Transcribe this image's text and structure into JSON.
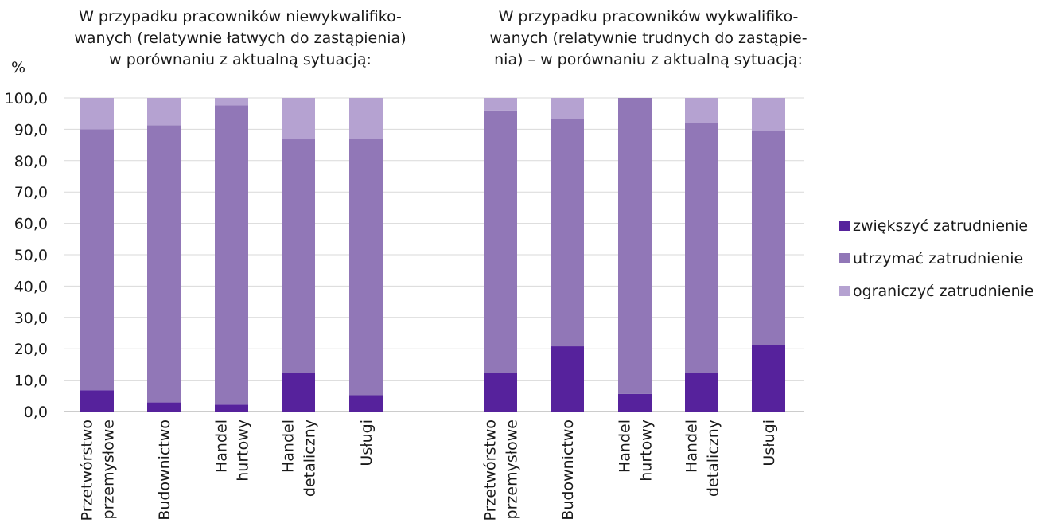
{
  "chart_data": {
    "type": "bar",
    "stacked": true,
    "ylabel": "%",
    "ylim": [
      0,
      100
    ],
    "yticks": [
      "0,0",
      "10,0",
      "20,0",
      "30,0",
      "40,0",
      "50,0",
      "60,0",
      "70,0",
      "80,0",
      "90,0",
      "100,0"
    ],
    "grid": true,
    "legend_position": "right",
    "colors": [
      "#56229c",
      "#9177b7",
      "#b5a2d1"
    ],
    "series_names": [
      "zwiększyć zatrudnienie",
      "utrzymać zatrudnienie",
      "ograniczyć zatrudnienie"
    ],
    "panels": [
      {
        "title": "W przypadku pracowników niewykwalifiko-\nwanych (relatywnie łatwych do zastąpienia)\nw porównaniu z aktualną sytuacją:",
        "categories": [
          [
            "Przetwórstwo",
            "przemysłowe"
          ],
          [
            "Budownictwo"
          ],
          [
            "Handel",
            "hurtowy"
          ],
          [
            "Handel",
            "detaliczny"
          ],
          [
            "Usługi"
          ]
        ],
        "series": [
          {
            "name": "zwiększyć zatrudnienie",
            "values": [
              6.8,
              2.9,
              2.2,
              12.4,
              5.2
            ]
          },
          {
            "name": "utrzymać zatrudnienie",
            "values": [
              83.2,
              88.4,
              95.4,
              74.4,
              81.8
            ]
          },
          {
            "name": "ograniczyć zatrudnienie",
            "values": [
              10.0,
              8.7,
              2.4,
              13.2,
              13.0
            ]
          }
        ]
      },
      {
        "title": "W przypadku pracowników wykwalifiko-\nwanych (relatywnie trudnych do zastąpie-\nnia) – w porównaniu z aktualną sytuacją:",
        "categories": [
          [
            "Przetwórstwo",
            "przemysłowe"
          ],
          [
            "Budownictwo"
          ],
          [
            "Handel",
            "hurtowy"
          ],
          [
            "Handel",
            "detaliczny"
          ],
          [
            "Usługi"
          ]
        ],
        "series": [
          {
            "name": "zwiększyć zatrudnienie",
            "values": [
              12.4,
              20.8,
              5.6,
              12.4,
              21.3
            ]
          },
          {
            "name": "utrzymać zatrudnienie",
            "values": [
              83.6,
              72.5,
              94.4,
              79.7,
              68.2
            ]
          },
          {
            "name": "ograniczyć zatrudnienie",
            "values": [
              4.0,
              6.7,
              0.0,
              7.9,
              10.5
            ]
          }
        ]
      }
    ]
  }
}
